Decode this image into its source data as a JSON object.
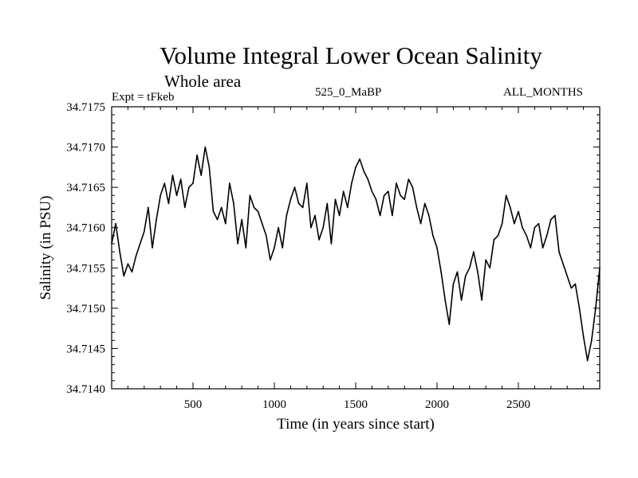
{
  "header": {
    "title": "Volume Integral Lower Ocean Salinity",
    "subtitle": "Whole area",
    "expt": "Expt = tFkeb",
    "run": "525_0_MaBP",
    "months": "ALL_MONTHS"
  },
  "chart_data": {
    "type": "line",
    "title": "Volume Integral Lower Ocean Salinity",
    "subtitle": "Whole area",
    "xlabel": "Time (in years since start)",
    "ylabel": "Salinity (in PSU)",
    "xlim": [
      0,
      3000
    ],
    "ylim": [
      34.714,
      34.7175
    ],
    "xticks": [
      500,
      1000,
      1500,
      2000,
      2500
    ],
    "xtick_labels": [
      "500",
      "1000",
      "1500",
      "2000",
      "2500"
    ],
    "yticks": [
      34.714,
      34.7145,
      34.715,
      34.7155,
      34.716,
      34.7165,
      34.717,
      34.7175
    ],
    "ytick_labels": [
      "34.7140",
      "34.7145",
      "34.7150",
      "34.7155",
      "34.7160",
      "34.7165",
      "34.7170",
      "34.7175"
    ],
    "grid": false,
    "line_color": "#000000",
    "x": [
      0,
      25,
      50,
      75,
      100,
      125,
      150,
      175,
      200,
      225,
      250,
      275,
      300,
      325,
      350,
      375,
      400,
      425,
      450,
      475,
      500,
      525,
      550,
      575,
      600,
      625,
      650,
      675,
      700,
      725,
      750,
      775,
      800,
      825,
      850,
      875,
      900,
      925,
      950,
      975,
      1000,
      1025,
      1050,
      1075,
      1100,
      1125,
      1150,
      1175,
      1200,
      1225,
      1250,
      1275,
      1300,
      1325,
      1350,
      1375,
      1400,
      1425,
      1450,
      1475,
      1500,
      1525,
      1550,
      1575,
      1600,
      1625,
      1650,
      1675,
      1700,
      1725,
      1750,
      1775,
      1800,
      1825,
      1850,
      1875,
      1900,
      1925,
      1950,
      1975,
      2000,
      2025,
      2050,
      2075,
      2100,
      2125,
      2150,
      2175,
      2200,
      2225,
      2250,
      2275,
      2300,
      2325,
      2350,
      2375,
      2400,
      2425,
      2450,
      2475,
      2500,
      2525,
      2550,
      2575,
      2600,
      2625,
      2650,
      2675,
      2700,
      2725,
      2750,
      2775,
      2800,
      2825,
      2850,
      2875,
      2900,
      2925,
      2950,
      2975,
      3000
    ],
    "series": [
      {
        "values": [
          34.7158,
          34.71605,
          34.7157,
          34.7154,
          34.71555,
          34.71545,
          34.71565,
          34.7158,
          34.71595,
          34.71625,
          34.71575,
          34.7161,
          34.7164,
          34.71655,
          34.7163,
          34.71665,
          34.7164,
          34.7166,
          34.71625,
          34.7165,
          34.71655,
          34.7169,
          34.71665,
          34.717,
          34.71675,
          34.7162,
          34.7161,
          34.71625,
          34.71605,
          34.71655,
          34.7163,
          34.7158,
          34.7161,
          34.71575,
          34.7164,
          34.71625,
          34.7162,
          34.71605,
          34.7159,
          34.7156,
          34.71575,
          34.716,
          34.71575,
          34.71615,
          34.71635,
          34.7165,
          34.7163,
          34.71625,
          34.71655,
          34.716,
          34.71615,
          34.71585,
          34.716,
          34.7163,
          34.7158,
          34.71635,
          34.71615,
          34.71645,
          34.71625,
          34.71655,
          34.71675,
          34.71685,
          34.7167,
          34.7166,
          34.71645,
          34.71635,
          34.71615,
          34.7164,
          34.71645,
          34.71615,
          34.71655,
          34.7164,
          34.71635,
          34.7166,
          34.7165,
          34.71625,
          34.71605,
          34.7163,
          34.71615,
          34.7159,
          34.71575,
          34.71545,
          34.7151,
          34.7148,
          34.7153,
          34.71545,
          34.7151,
          34.7154,
          34.7155,
          34.7157,
          34.71545,
          34.7151,
          34.7156,
          34.7155,
          34.71585,
          34.7159,
          34.71605,
          34.7164,
          34.71625,
          34.71605,
          34.7162,
          34.716,
          34.7159,
          34.71575,
          34.716,
          34.71605,
          34.71575,
          34.7159,
          34.7161,
          34.71615,
          34.7157,
          34.71555,
          34.7154,
          34.71525,
          34.7153,
          34.715,
          34.71465,
          34.71435,
          34.7146,
          34.715,
          34.7155
        ]
      }
    ]
  }
}
